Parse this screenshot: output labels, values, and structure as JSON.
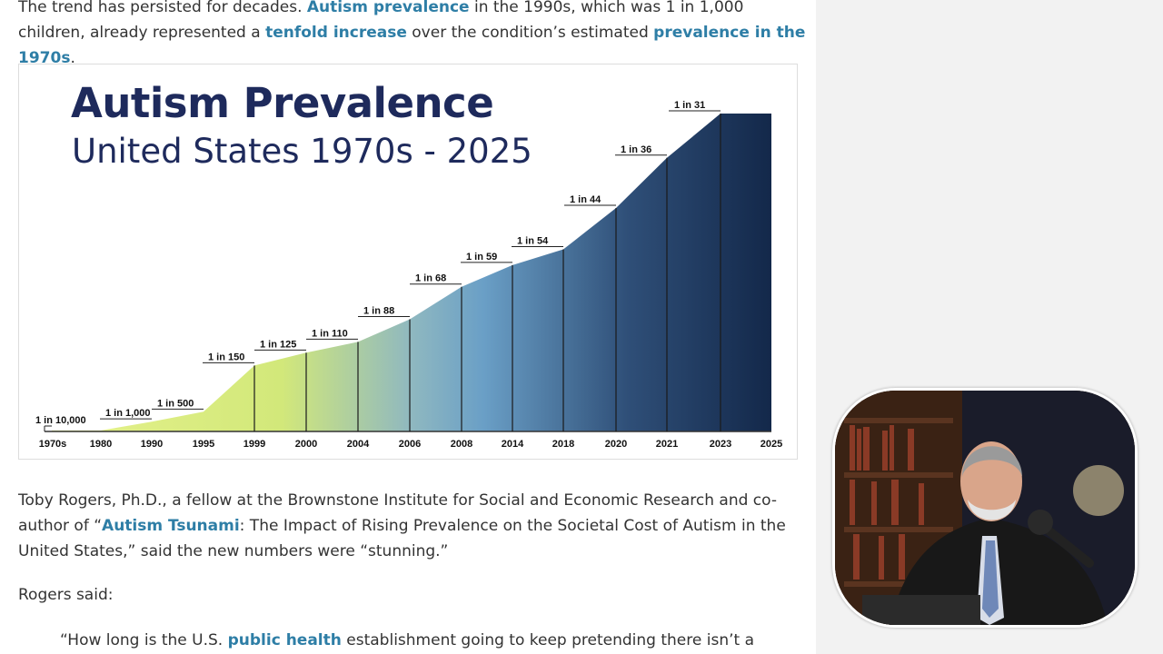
{
  "article": {
    "p1": [
      {
        "t": "The trend has persisted for decades. "
      },
      {
        "t": "Autism prevalence",
        "link": true
      },
      {
        "t": " in the 1990s, which was 1 in 1,000 children, already represented a "
      },
      {
        "t": "tenfold increase",
        "link": true
      },
      {
        "t": " over the condition’s estimated "
      },
      {
        "t": "prevalence in the 1970s",
        "link": true
      },
      {
        "t": "."
      }
    ],
    "p2": [
      {
        "t": "Toby Rogers, Ph.D., a fellow at the Brownstone Institute for Social and Economic Research and co-author of “"
      },
      {
        "t": "Autism Tsunami",
        "link": true
      },
      {
        "t": ": The Impact of Rising Prevalence on the Societal Cost of Autism in the United States,” said the new numbers were “stunning.”"
      }
    ],
    "p3": "Rogers said:",
    "p4": [
      {
        "t": "“How long is the U.S. "
      },
      {
        "t": "public health",
        "link": true
      },
      {
        "t": " establishment going to keep pretending there isn’t a"
      }
    ]
  },
  "chart_data": {
    "type": "area",
    "title": "Autism Prevalence",
    "subtitle": "United States 1970s - 2025",
    "x": [
      "1970s",
      "1980",
      "1990",
      "1995",
      "1999",
      "2000",
      "2004",
      "2006",
      "2008",
      "2014",
      "2018",
      "2020",
      "2021",
      "2023",
      "2025"
    ],
    "labels": [
      "1 in 10,000",
      "",
      "1 in 1,000",
      "1 in 500",
      "1 in 150",
      "1 in 125",
      "1 in 110",
      "1 in 88",
      "1 in 68",
      "1 in 59",
      "1 in 54",
      "1 in 44",
      "1 in 36",
      "1 in 31",
      ""
    ],
    "values": [
      0.0001,
      0.0001,
      0.001,
      0.002,
      0.0067,
      0.008,
      0.0091,
      0.0114,
      0.0147,
      0.0169,
      0.0185,
      0.0227,
      0.0278,
      0.0323,
      0.0323
    ],
    "colors": {
      "low": "#d8ec7a",
      "mid": "#6a9fc6",
      "high": "#13284a"
    }
  },
  "video": {
    "description_icon": "presenter-video-icon"
  }
}
